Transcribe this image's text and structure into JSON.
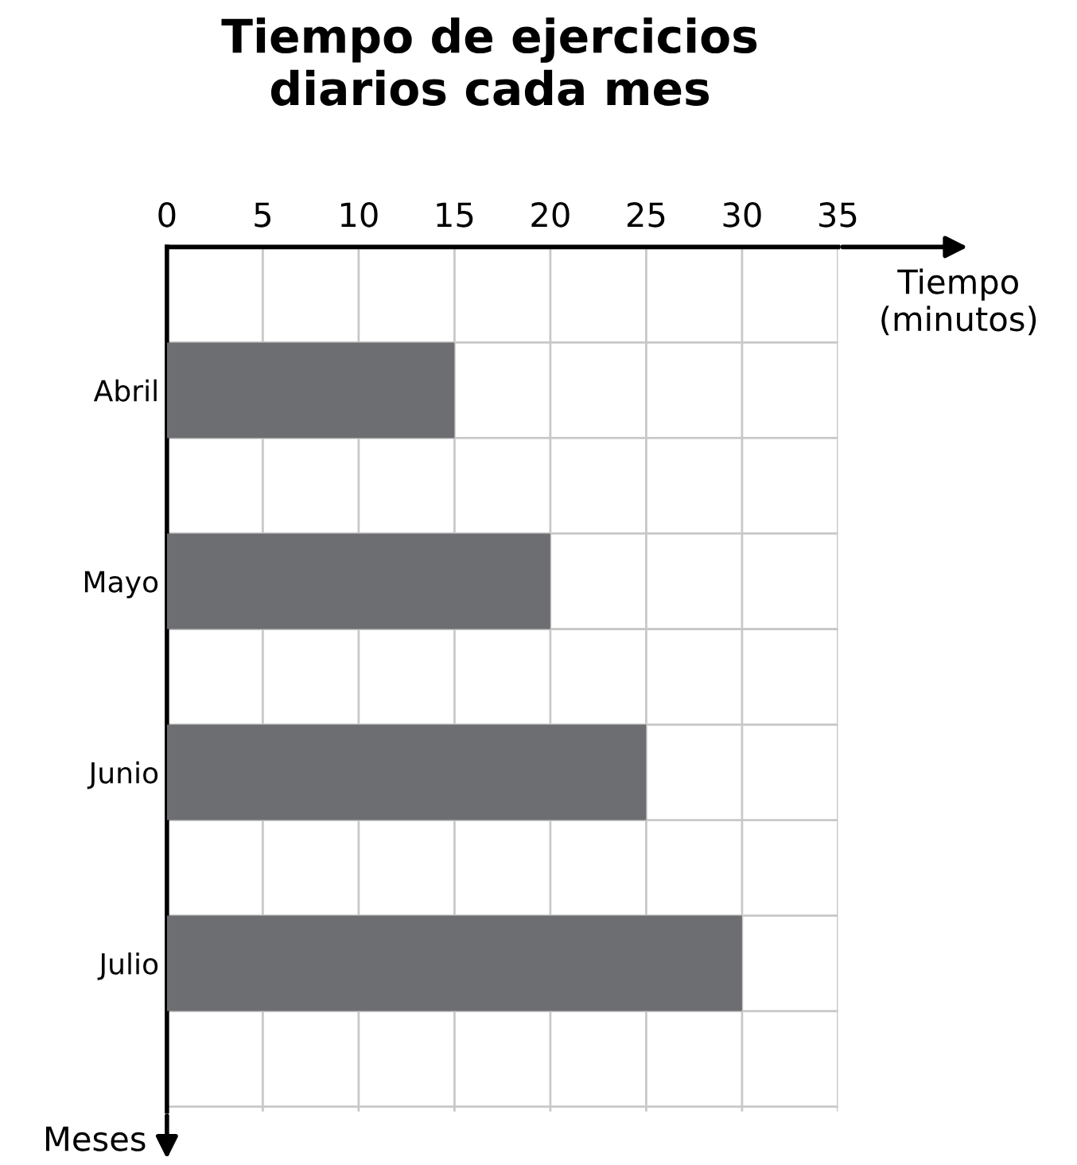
{
  "chart_data": {
    "type": "bar",
    "orientation": "horizontal",
    "title": "Tiempo de ejercicios\ndiarios cada mes",
    "xlabel": "Tiempo\n(minutos)",
    "ylabel": "Meses",
    "categories": [
      "Abril",
      "Mayo",
      "Junio",
      "Julio"
    ],
    "values": [
      15,
      20,
      25,
      30
    ],
    "color": "#6d6e71",
    "xlim": [
      0,
      35
    ],
    "xticks": [
      0,
      5,
      10,
      15,
      20,
      25,
      30,
      35
    ],
    "grid": true
  }
}
